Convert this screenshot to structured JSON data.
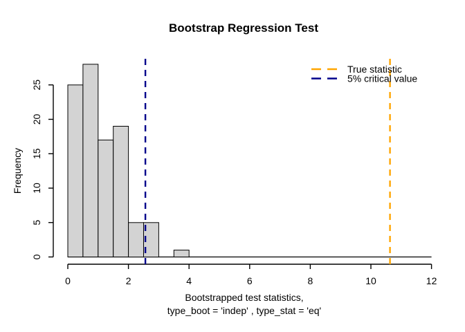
{
  "chart_data": {
    "type": "bar",
    "subtype": "histogram",
    "title": "Bootstrap Regression Test",
    "ylabel": "Frequency",
    "xlabel_line1": "Bootstrapped test statistics,",
    "xlabel_line2": "type_boot = 'indep' , type_stat = 'eq'",
    "bins": {
      "start": 0,
      "width": 0.5,
      "counts": [
        25,
        28,
        17,
        19,
        5,
        5,
        0,
        1,
        0,
        0,
        0,
        0,
        0,
        0,
        0,
        0,
        0,
        0,
        0,
        0,
        0,
        0,
        0,
        0
      ]
    },
    "xticks": [
      0,
      2,
      4,
      6,
      8,
      10,
      12
    ],
    "yticks": [
      0,
      5,
      10,
      15,
      20,
      25
    ],
    "xlim": [
      0,
      12
    ],
    "ylim": [
      0,
      28
    ],
    "grid": false,
    "bar_fill": "#d3d3d3",
    "bar_stroke": "#000000",
    "axis_color": "#000000",
    "vlines": [
      {
        "value": 10.63,
        "color": "#ffa500",
        "style": "dashed",
        "name": "true-statistic-line"
      },
      {
        "value": 2.56,
        "color": "#00008b",
        "style": "dashed",
        "name": "critical-value-line"
      }
    ],
    "legend": {
      "position": "top-right",
      "entries": [
        {
          "label": "True statistic",
          "color": "#ffa500",
          "line_style": "dashed"
        },
        {
          "label": "5% critical value",
          "color": "#00008b",
          "line_style": "dashed"
        }
      ]
    }
  }
}
